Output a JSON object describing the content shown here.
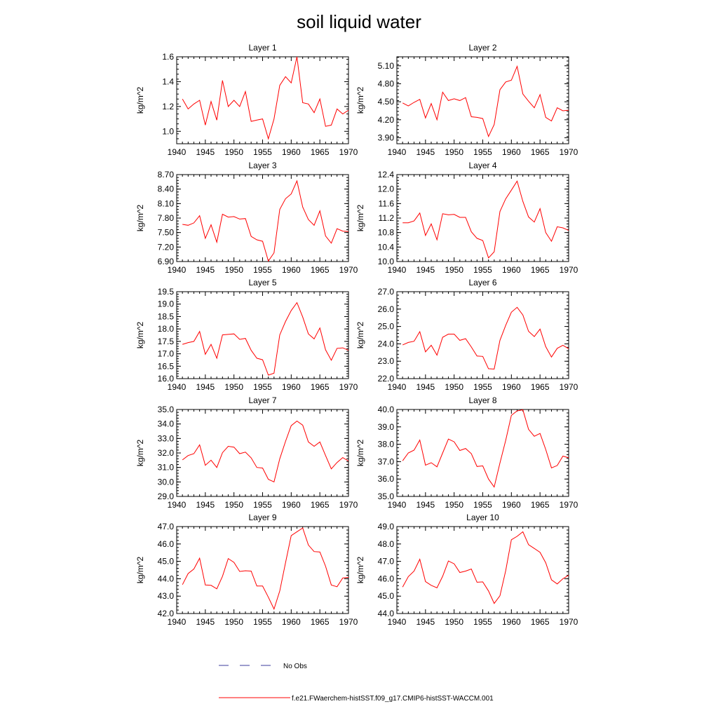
{
  "page_title": "soil liquid water",
  "legend": {
    "obs_label": "No Obs",
    "obs_color": "#3b3b9e",
    "model_label": "f.e21.FWaerchem-histSST.f09_g17.CMIP6-histSST-WACCM.001",
    "model_color": "#ff0000"
  },
  "chart_data": [
    {
      "type": "line",
      "title": "Layer 1",
      "ylabel": "kg/m^2",
      "xlim": [
        1940,
        1970
      ],
      "ylim": [
        0.9,
        1.6
      ],
      "xticks": [
        1940,
        1945,
        1950,
        1955,
        1960,
        1965,
        1970
      ],
      "yticks": [
        1.0,
        1.2,
        1.4,
        1.6
      ],
      "ytick_labels": [
        "1.0",
        "1.2",
        "1.4",
        "1.6"
      ],
      "x": [
        1941,
        1942,
        1943,
        1944,
        1945,
        1946,
        1947,
        1948,
        1949,
        1950,
        1951,
        1952,
        1953,
        1954,
        1955,
        1956,
        1957,
        1958,
        1959,
        1960,
        1961,
        1962,
        1963,
        1964,
        1965,
        1966,
        1967,
        1968,
        1969,
        1970
      ],
      "series": [
        {
          "name": "f.e21.FWaerchem-histSST.f09_g17.CMIP6-histSST-WACCM.001",
          "values": [
            1.26,
            1.18,
            1.22,
            1.25,
            1.05,
            1.24,
            1.09,
            1.41,
            1.2,
            1.25,
            1.2,
            1.32,
            1.08,
            1.09,
            1.1,
            0.94,
            1.1,
            1.37,
            1.44,
            1.39,
            1.6,
            1.23,
            1.22,
            1.15,
            1.26,
            1.04,
            1.05,
            1.18,
            1.14,
            1.17
          ]
        }
      ]
    },
    {
      "type": "line",
      "title": "Layer 2",
      "ylabel": "kg/m^2",
      "xlim": [
        1940,
        1970
      ],
      "ylim": [
        3.8,
        5.25
      ],
      "xticks": [
        1940,
        1945,
        1950,
        1955,
        1960,
        1965,
        1970
      ],
      "yticks": [
        3.9,
        4.2,
        4.5,
        4.8,
        5.1
      ],
      "ytick_labels": [
        "3.90",
        "4.20",
        "4.50",
        "4.80",
        "5.10"
      ],
      "x": [
        1941,
        1942,
        1943,
        1944,
        1945,
        1946,
        1947,
        1948,
        1949,
        1950,
        1951,
        1952,
        1953,
        1954,
        1955,
        1956,
        1957,
        1958,
        1959,
        1960,
        1961,
        1962,
        1963,
        1964,
        1965,
        1966,
        1967,
        1968,
        1969,
        1970
      ],
      "series": [
        {
          "name": "f.e21.FWaerchem-histSST.f09_g17.CMIP6-histSST-WACCM.001",
          "values": [
            4.48,
            4.43,
            4.49,
            4.54,
            4.23,
            4.47,
            4.2,
            4.66,
            4.52,
            4.55,
            4.52,
            4.57,
            4.25,
            4.24,
            4.22,
            3.92,
            4.12,
            4.7,
            4.83,
            4.86,
            5.09,
            4.63,
            4.51,
            4.4,
            4.62,
            4.24,
            4.18,
            4.4,
            4.35,
            4.36
          ]
        }
      ]
    },
    {
      "type": "line",
      "title": "Layer 3",
      "ylabel": "kg/m^2",
      "xlim": [
        1940,
        1970
      ],
      "ylim": [
        6.9,
        8.7
      ],
      "xticks": [
        1940,
        1945,
        1950,
        1955,
        1960,
        1965,
        1970
      ],
      "yticks": [
        6.9,
        7.2,
        7.5,
        7.8,
        8.1,
        8.4,
        8.7
      ],
      "ytick_labels": [
        "6.90",
        "7.20",
        "7.50",
        "7.80",
        "8.10",
        "8.40",
        "8.70"
      ],
      "x": [
        1941,
        1942,
        1943,
        1944,
        1945,
        1946,
        1947,
        1948,
        1949,
        1950,
        1951,
        1952,
        1953,
        1954,
        1955,
        1956,
        1957,
        1958,
        1959,
        1960,
        1961,
        1962,
        1963,
        1964,
        1965,
        1966,
        1967,
        1968,
        1969,
        1970
      ],
      "series": [
        {
          "name": "f.e21.FWaerchem-histSST.f09_g17.CMIP6-histSST-WACCM.001",
          "values": [
            7.67,
            7.65,
            7.7,
            7.85,
            7.38,
            7.66,
            7.3,
            7.88,
            7.82,
            7.83,
            7.78,
            7.79,
            7.42,
            7.35,
            7.32,
            6.91,
            7.08,
            7.98,
            8.2,
            8.3,
            8.57,
            8.03,
            7.77,
            7.65,
            7.95,
            7.43,
            7.28,
            7.58,
            7.53,
            7.52
          ]
        }
      ]
    },
    {
      "type": "line",
      "title": "Layer 4",
      "ylabel": "kg/m^2",
      "xlim": [
        1940,
        1970
      ],
      "ylim": [
        10.0,
        12.4
      ],
      "xticks": [
        1940,
        1945,
        1950,
        1955,
        1960,
        1965,
        1970
      ],
      "yticks": [
        10.0,
        10.4,
        10.8,
        11.2,
        11.6,
        12.0,
        12.4
      ],
      "ytick_labels": [
        "10.0",
        "10.4",
        "10.8",
        "11.2",
        "11.6",
        "12.0",
        "12.4"
      ],
      "x": [
        1941,
        1942,
        1943,
        1944,
        1945,
        1946,
        1947,
        1948,
        1949,
        1950,
        1951,
        1952,
        1953,
        1954,
        1955,
        1956,
        1957,
        1958,
        1959,
        1960,
        1961,
        1962,
        1963,
        1964,
        1965,
        1966,
        1967,
        1968,
        1969,
        1970
      ],
      "series": [
        {
          "name": "f.e21.FWaerchem-histSST.f09_g17.CMIP6-histSST-WACCM.001",
          "values": [
            11.07,
            11.07,
            11.12,
            11.34,
            10.72,
            11.04,
            10.6,
            11.32,
            11.29,
            11.3,
            11.22,
            11.22,
            10.82,
            10.64,
            10.58,
            10.1,
            10.27,
            11.38,
            11.73,
            11.97,
            12.22,
            11.66,
            11.23,
            11.09,
            11.46,
            10.8,
            10.56,
            10.96,
            10.93,
            10.86
          ]
        }
      ]
    },
    {
      "type": "line",
      "title": "Layer 5",
      "ylabel": "kg/m^2",
      "xlim": [
        1940,
        1970
      ],
      "ylim": [
        16.0,
        19.5
      ],
      "xticks": [
        1940,
        1945,
        1950,
        1955,
        1960,
        1965,
        1970
      ],
      "yticks": [
        16.0,
        16.5,
        17.0,
        17.5,
        18.0,
        18.5,
        19.0,
        19.5
      ],
      "ytick_labels": [
        "16.0",
        "16.5",
        "17.0",
        "17.5",
        "18.0",
        "18.5",
        "19.0",
        "19.5"
      ],
      "x": [
        1941,
        1942,
        1943,
        1944,
        1945,
        1946,
        1947,
        1948,
        1949,
        1950,
        1951,
        1952,
        1953,
        1954,
        1955,
        1956,
        1957,
        1958,
        1959,
        1960,
        1961,
        1962,
        1963,
        1964,
        1965,
        1966,
        1967,
        1968,
        1969,
        1970
      ],
      "series": [
        {
          "name": "f.e21.FWaerchem-histSST.f09_g17.CMIP6-histSST-WACCM.001",
          "values": [
            17.38,
            17.45,
            17.5,
            17.9,
            16.98,
            17.38,
            16.82,
            17.76,
            17.78,
            17.8,
            17.58,
            17.62,
            17.14,
            16.82,
            16.76,
            16.14,
            16.22,
            17.76,
            18.3,
            18.74,
            19.06,
            18.48,
            17.8,
            17.6,
            18.04,
            17.16,
            16.74,
            17.22,
            17.24,
            17.14
          ]
        }
      ]
    },
    {
      "type": "line",
      "title": "Layer 6",
      "ylabel": "kg/m^2",
      "xlim": [
        1940,
        1970
      ],
      "ylim": [
        22.0,
        27.0
      ],
      "xticks": [
        1940,
        1945,
        1950,
        1955,
        1960,
        1965,
        1970
      ],
      "yticks": [
        22.0,
        23.0,
        24.0,
        25.0,
        26.0,
        27.0
      ],
      "ytick_labels": [
        "22.0",
        "23.0",
        "24.0",
        "25.0",
        "26.0",
        "27.0"
      ],
      "x": [
        1941,
        1942,
        1943,
        1944,
        1945,
        1946,
        1947,
        1948,
        1949,
        1950,
        1951,
        1952,
        1953,
        1954,
        1955,
        1956,
        1957,
        1958,
        1959,
        1960,
        1961,
        1962,
        1963,
        1964,
        1965,
        1966,
        1967,
        1968,
        1969,
        1970
      ],
      "series": [
        {
          "name": "f.e21.FWaerchem-histSST.f09_g17.CMIP6-histSST-WACCM.001",
          "values": [
            23.94,
            24.08,
            24.15,
            24.7,
            23.54,
            23.92,
            23.35,
            24.38,
            24.56,
            24.56,
            24.2,
            24.3,
            23.82,
            23.3,
            23.28,
            22.57,
            22.55,
            24.2,
            25.06,
            25.82,
            26.1,
            25.66,
            24.72,
            24.42,
            24.85,
            23.84,
            23.24,
            23.74,
            23.92,
            23.72
          ]
        }
      ]
    },
    {
      "type": "line",
      "title": "Layer 7",
      "ylabel": "kg/m^2",
      "xlim": [
        1940,
        1970
      ],
      "ylim": [
        29.0,
        35.0
      ],
      "xticks": [
        1940,
        1945,
        1950,
        1955,
        1960,
        1965,
        1970
      ],
      "yticks": [
        29.0,
        30.0,
        31.0,
        32.0,
        33.0,
        34.0,
        35.0
      ],
      "ytick_labels": [
        "29.0",
        "30.0",
        "31.0",
        "32.0",
        "33.0",
        "34.0",
        "35.0"
      ],
      "x": [
        1941,
        1942,
        1943,
        1944,
        1945,
        1946,
        1947,
        1948,
        1949,
        1950,
        1951,
        1952,
        1953,
        1954,
        1955,
        1956,
        1957,
        1958,
        1959,
        1960,
        1961,
        1962,
        1963,
        1964,
        1965,
        1966,
        1967,
        1968,
        1969,
        1970
      ],
      "series": [
        {
          "name": "f.e21.FWaerchem-histSST.f09_g17.CMIP6-histSST-WACCM.001",
          "values": [
            31.52,
            31.82,
            31.95,
            32.56,
            31.15,
            31.5,
            31.0,
            32.02,
            32.46,
            32.4,
            31.95,
            32.06,
            31.66,
            31.0,
            30.96,
            30.18,
            30.0,
            31.6,
            32.8,
            33.88,
            34.2,
            33.92,
            32.76,
            32.46,
            32.76,
            31.82,
            30.9,
            31.34,
            31.68,
            31.44
          ]
        }
      ]
    },
    {
      "type": "line",
      "title": "Layer 8",
      "ylabel": "kg/m^2",
      "xlim": [
        1940,
        1970
      ],
      "ylim": [
        35.0,
        40.0
      ],
      "xticks": [
        1940,
        1945,
        1950,
        1955,
        1960,
        1965,
        1970
      ],
      "yticks": [
        35.0,
        36.0,
        37.0,
        38.0,
        39.0,
        40.0
      ],
      "ytick_labels": [
        "35.0",
        "36.0",
        "37.0",
        "38.0",
        "39.0",
        "40.0"
      ],
      "x": [
        1941,
        1942,
        1943,
        1944,
        1945,
        1946,
        1947,
        1948,
        1949,
        1950,
        1951,
        1952,
        1953,
        1954,
        1955,
        1956,
        1957,
        1958,
        1959,
        1960,
        1961,
        1962,
        1963,
        1964,
        1965,
        1966,
        1967,
        1968,
        1969,
        1970
      ],
      "series": [
        {
          "name": "f.e21.FWaerchem-histSST.f09_g17.CMIP6-histSST-WACCM.001",
          "values": [
            37.05,
            37.5,
            37.66,
            38.24,
            36.8,
            36.94,
            36.7,
            37.5,
            38.3,
            38.14,
            37.64,
            37.76,
            37.46,
            36.72,
            36.76,
            36.0,
            35.54,
            36.92,
            38.22,
            39.66,
            39.92,
            39.98,
            38.86,
            38.46,
            38.62,
            37.7,
            36.64,
            36.78,
            37.32,
            37.22
          ]
        }
      ]
    },
    {
      "type": "line",
      "title": "Layer 9",
      "ylabel": "kg/m^2",
      "xlim": [
        1940,
        1970
      ],
      "ylim": [
        42.0,
        47.0
      ],
      "xticks": [
        1940,
        1945,
        1950,
        1955,
        1960,
        1965,
        1970
      ],
      "yticks": [
        42.0,
        43.0,
        44.0,
        45.0,
        46.0,
        47.0
      ],
      "ytick_labels": [
        "42.0",
        "43.0",
        "44.0",
        "45.0",
        "46.0",
        "47.0"
      ],
      "x": [
        1941,
        1942,
        1943,
        1944,
        1945,
        1946,
        1947,
        1948,
        1949,
        1950,
        1951,
        1952,
        1953,
        1954,
        1955,
        1956,
        1957,
        1958,
        1959,
        1960,
        1961,
        1962,
        1963,
        1964,
        1965,
        1966,
        1967,
        1968,
        1969,
        1970
      ],
      "series": [
        {
          "name": "f.e21.FWaerchem-histSST.f09_g17.CMIP6-histSST-WACCM.001",
          "values": [
            43.66,
            44.3,
            44.56,
            45.18,
            43.64,
            43.62,
            43.42,
            44.14,
            45.16,
            44.94,
            44.42,
            44.46,
            44.44,
            43.58,
            43.58,
            42.94,
            42.26,
            43.3,
            44.92,
            46.48,
            46.7,
            46.92,
            45.94,
            45.56,
            45.54,
            44.72,
            43.64,
            43.54,
            44.04,
            44.08
          ]
        }
      ]
    },
    {
      "type": "line",
      "title": "Layer 10",
      "ylabel": "kg/m^2",
      "xlim": [
        1940,
        1970
      ],
      "ylim": [
        44.0,
        49.0
      ],
      "xticks": [
        1940,
        1945,
        1950,
        1955,
        1960,
        1965,
        1970
      ],
      "yticks": [
        44.0,
        45.0,
        46.0,
        47.0,
        48.0,
        49.0
      ],
      "ytick_labels": [
        "44.0",
        "45.0",
        "46.0",
        "47.0",
        "48.0",
        "49.0"
      ],
      "x": [
        1941,
        1942,
        1943,
        1944,
        1945,
        1946,
        1947,
        1948,
        1949,
        1950,
        1951,
        1952,
        1953,
        1954,
        1955,
        1956,
        1957,
        1958,
        1959,
        1960,
        1961,
        1962,
        1963,
        1964,
        1965,
        1966,
        1967,
        1968,
        1969,
        1970
      ],
      "series": [
        {
          "name": "f.e21.FWaerchem-histSST.f09_g17.CMIP6-histSST-WACCM.001",
          "values": [
            45.52,
            46.12,
            46.44,
            47.12,
            45.84,
            45.62,
            45.48,
            46.14,
            47.02,
            46.86,
            46.36,
            46.44,
            46.56,
            45.8,
            45.82,
            45.3,
            44.58,
            45.02,
            46.46,
            48.24,
            48.44,
            48.7,
            47.96,
            47.74,
            47.52,
            46.92,
            45.94,
            45.7,
            46.0,
            46.2
          ]
        }
      ]
    }
  ]
}
